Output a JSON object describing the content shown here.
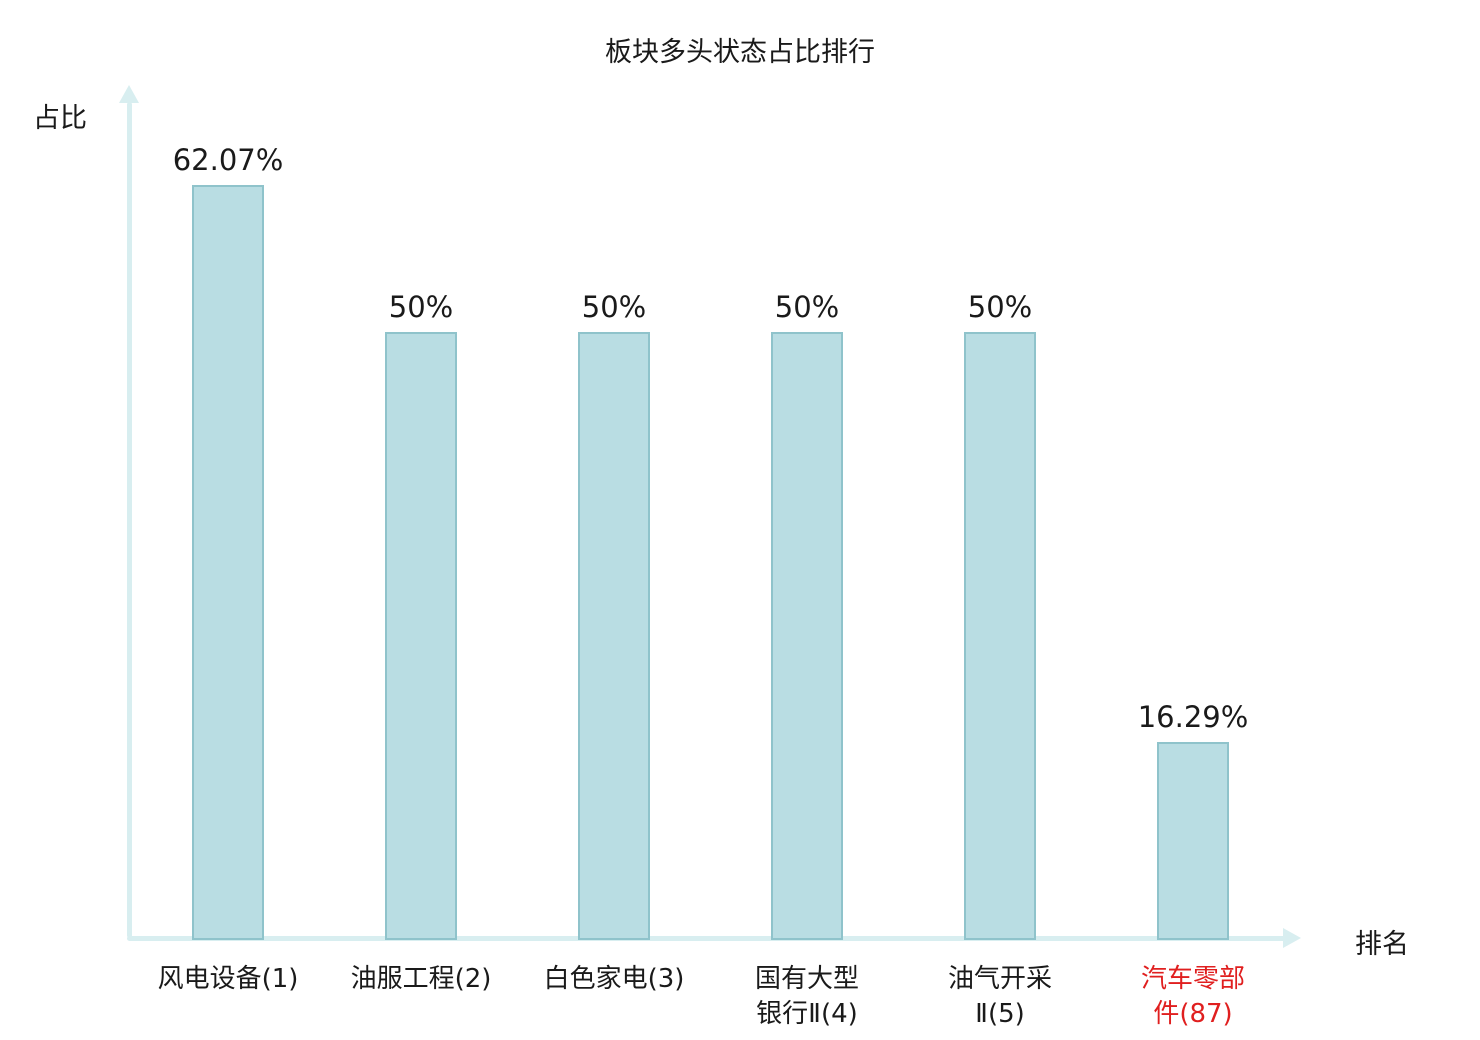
{
  "chart_data": {
    "type": "bar",
    "title": "板块多头状态占比排行",
    "xlabel": "排名",
    "ylabel": "占比",
    "categories": [
      "风电设备(1)",
      "油服工程(2)",
      "白色家电(3)",
      "国有大型\n银行Ⅱ(4)",
      "油气开采\nⅡ(5)",
      "汽车零部\n件(87)"
    ],
    "values": [
      62.07,
      50,
      50,
      50,
      50,
      16.29
    ],
    "value_labels": [
      "62.07%",
      "50%",
      "50%",
      "50%",
      "50%",
      "16.29%"
    ],
    "highlight_index": 5,
    "ylim": [
      0,
      70
    ],
    "grid": false,
    "legend": false,
    "colors": {
      "bar_fill": "#b9dde3",
      "bar_border": "#8fc3cb",
      "axis": "#d8eef0",
      "text": "#1a1a1a",
      "highlight": "#e01f1f"
    }
  }
}
